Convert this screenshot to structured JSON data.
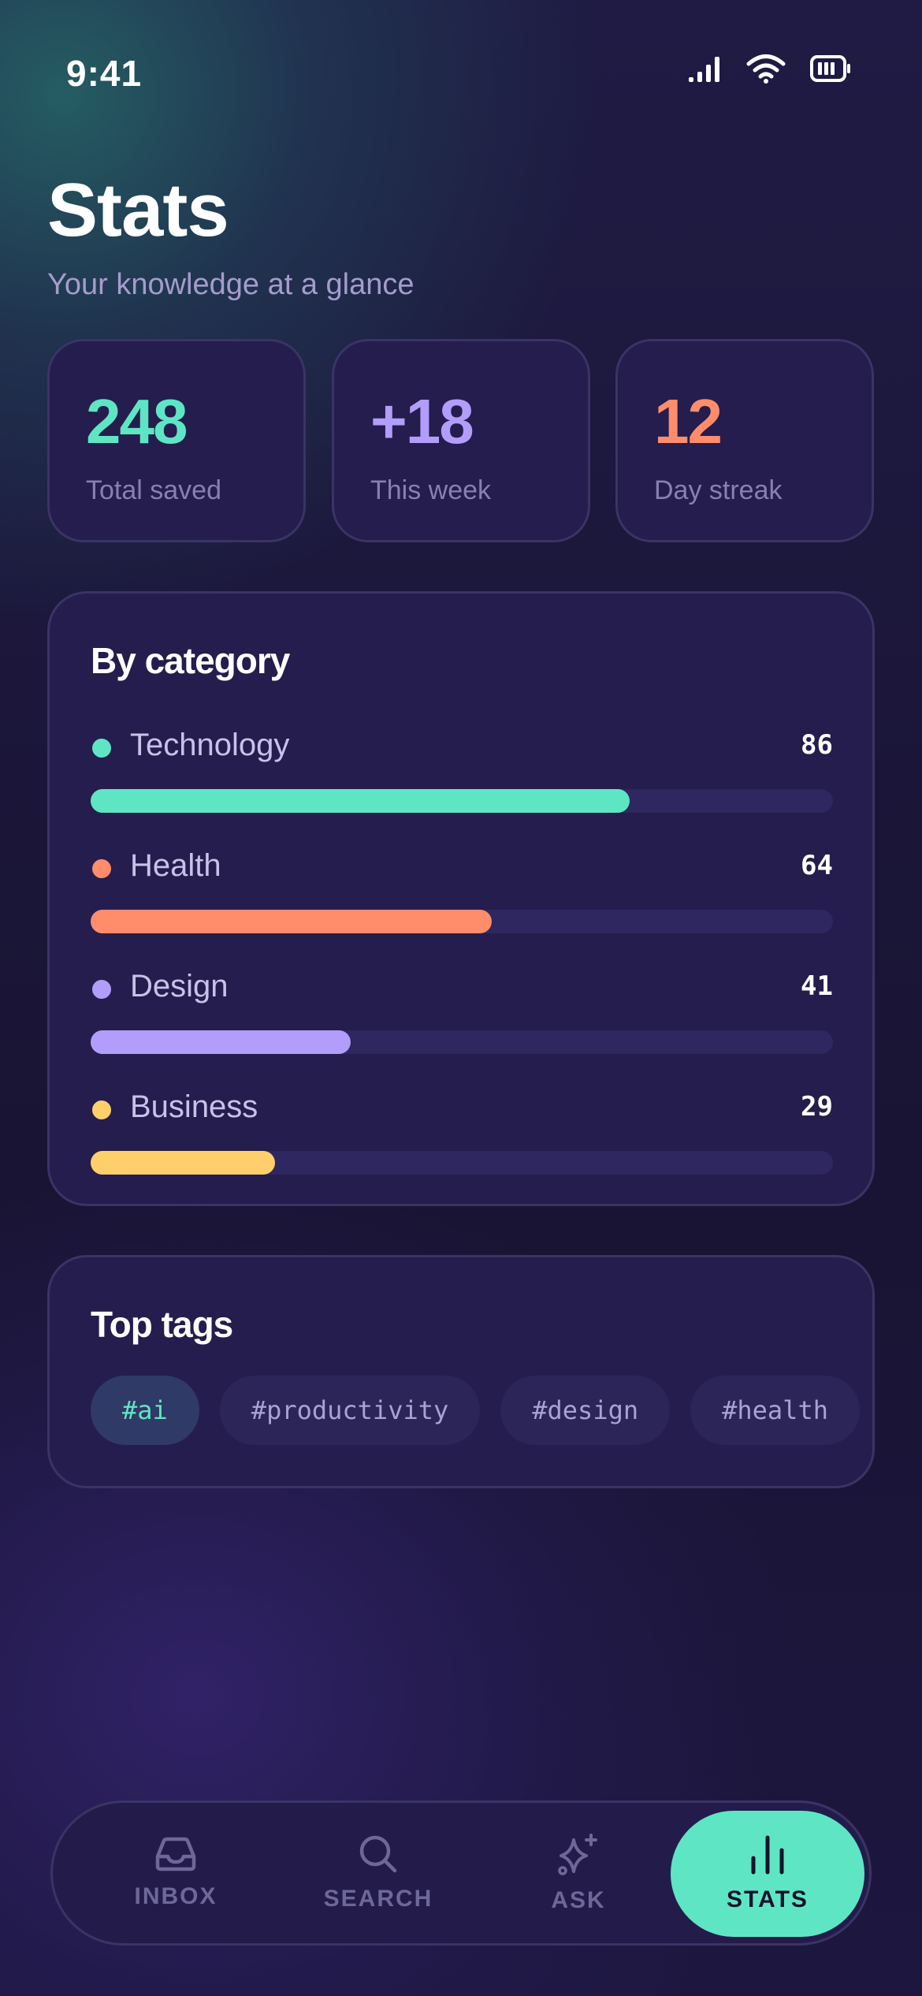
{
  "status_bar": {
    "time": "9:41"
  },
  "header": {
    "title": "Stats",
    "subtitle": "Your knowledge at a glance"
  },
  "summary": [
    {
      "value": "248",
      "label": "Total saved",
      "color": "#5ee6c4"
    },
    {
      "value": "+18",
      "label": "This week",
      "color": "#b39dfa"
    },
    {
      "value": "12",
      "label": "Day streak",
      "color": "#ff8c6b"
    }
  ],
  "categories": {
    "title": "By category",
    "items": [
      {
        "name": "Technology",
        "count": "86",
        "share": 0.726,
        "color": "#5ee6c4"
      },
      {
        "name": "Health",
        "count": "64",
        "share": 0.54,
        "color": "#ff8c6b"
      },
      {
        "name": "Design",
        "count": "41",
        "share": 0.35,
        "color": "#b39dfa"
      },
      {
        "name": "Business",
        "count": "29",
        "share": 0.248,
        "color": "#ffcf6b"
      }
    ]
  },
  "tags": {
    "title": "Top tags",
    "items": [
      "#ai",
      "#productivity",
      "#design",
      "#health"
    ]
  },
  "nav": {
    "items": [
      {
        "label": "INBOX",
        "icon": "inbox-icon"
      },
      {
        "label": "SEARCH",
        "icon": "search-icon"
      },
      {
        "label": "ASK",
        "icon": "sparkle-icon"
      },
      {
        "label": "STATS",
        "icon": "bar-chart-icon",
        "active": true
      }
    ]
  }
}
